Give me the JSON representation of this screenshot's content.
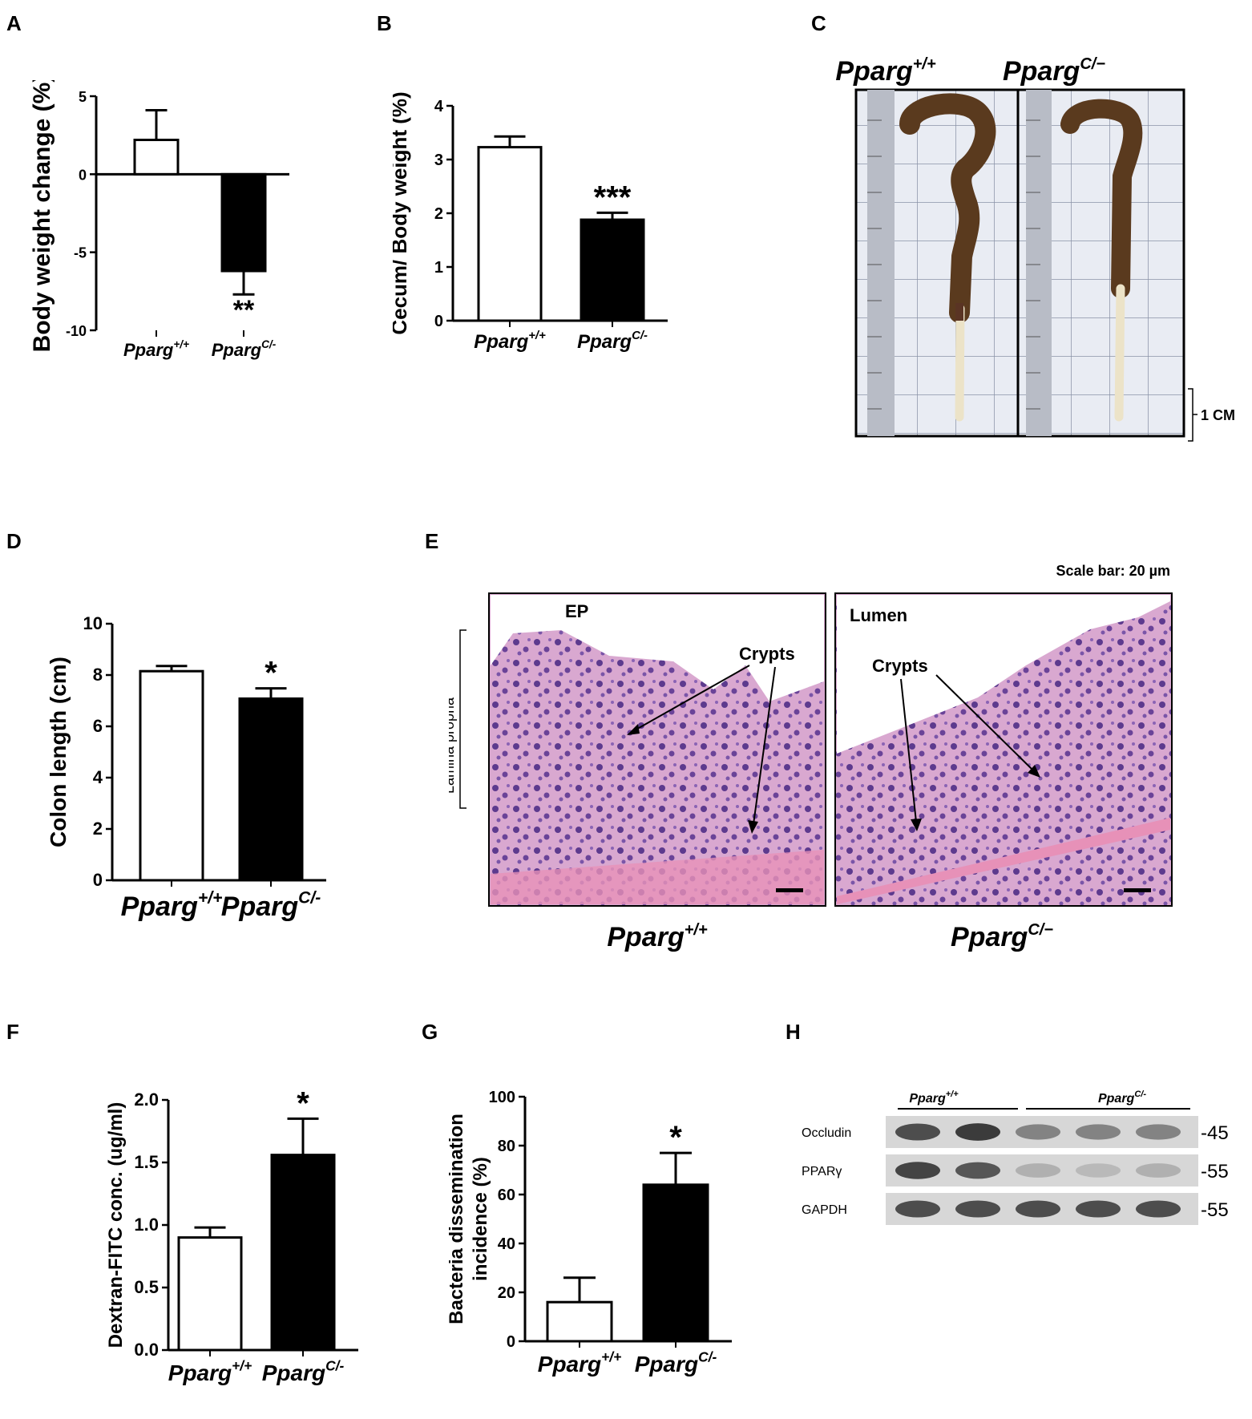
{
  "panels": {
    "A": "A",
    "B": "B",
    "C": "C",
    "D": "D",
    "E": "E",
    "F": "F",
    "G": "G",
    "H": "H"
  },
  "genotypes": {
    "wt_base": "Pparg",
    "wt_sup": "+/+",
    "ko_base": "Pparg",
    "ko_sup": "C/−",
    "ko_sup_h": "C/-"
  },
  "chart_data": [
    {
      "id": "A",
      "type": "bar",
      "categories": [
        "Pparg+/+",
        "PpargC/-"
      ],
      "values": [
        2.2,
        -6.2
      ],
      "errors": [
        1.9,
        1.5
      ],
      "colors": [
        "#ffffff",
        "#000000"
      ],
      "ylabel": "Body weight change (%)",
      "ylim": [
        -10,
        5
      ],
      "yticks": [
        5,
        0,
        -5,
        -10
      ],
      "ytick_labels": [
        "5",
        "0",
        "-5",
        "-10"
      ],
      "significance": [
        "",
        "**"
      ]
    },
    {
      "id": "B",
      "type": "bar",
      "categories": [
        "Pparg+/+",
        "PpargC/-"
      ],
      "values": [
        3.23,
        1.88
      ],
      "errors": [
        0.2,
        0.13
      ],
      "colors": [
        "#ffffff",
        "#000000"
      ],
      "ylabel": "Cecum/ Body weight (%)",
      "ylim": [
        0,
        4
      ],
      "yticks": [
        0,
        1,
        2,
        3,
        4
      ],
      "ytick_labels": [
        "0",
        "1",
        "2",
        "3",
        "4"
      ],
      "significance": [
        "",
        "***"
      ]
    },
    {
      "id": "D",
      "type": "bar",
      "categories": [
        "Pparg+/+",
        "PpargC/-"
      ],
      "values": [
        8.15,
        7.08
      ],
      "errors": [
        0.2,
        0.4
      ],
      "colors": [
        "#ffffff",
        "#000000"
      ],
      "ylabel": "Colon length (cm)",
      "ylim": [
        0,
        10
      ],
      "yticks": [
        0,
        2,
        4,
        6,
        8,
        10
      ],
      "ytick_labels": [
        "0",
        "2",
        "4",
        "6",
        "8",
        "10"
      ],
      "significance": [
        "",
        "*"
      ]
    },
    {
      "id": "F",
      "type": "bar",
      "categories": [
        "Pparg+/+",
        "PpargC/-"
      ],
      "values": [
        0.9,
        1.56
      ],
      "errors": [
        0.08,
        0.29
      ],
      "colors": [
        "#ffffff",
        "#000000"
      ],
      "ylabel": "Dextran-FITC conc. (ug/ml)",
      "ylim": [
        0,
        2
      ],
      "yticks": [
        0,
        0.5,
        1,
        1.5,
        2
      ],
      "ytick_labels": [
        "0.0",
        "0.5",
        "1.0",
        "1.5",
        "2.0"
      ],
      "significance": [
        "",
        "*"
      ]
    },
    {
      "id": "G",
      "type": "bar",
      "categories": [
        "Pparg+/+",
        "PpargC/-"
      ],
      "values": [
        16,
        64
      ],
      "errors": [
        10,
        13
      ],
      "colors": [
        "#ffffff",
        "#000000"
      ],
      "ylabel_lines": [
        "Bacteria dissemination",
        "incidence (%)"
      ],
      "ylim": [
        0,
        100
      ],
      "yticks": [
        0,
        20,
        40,
        60,
        80,
        100
      ],
      "ytick_labels": [
        "0",
        "20",
        "40",
        "60",
        "80",
        "100"
      ],
      "significance": [
        "",
        "*"
      ]
    }
  ],
  "photo_c": {
    "scale_label": "1 CM"
  },
  "histology_e": {
    "scale_bar": "Scale bar: 20 µm",
    "ep": "EP",
    "lamina": "Lamina propria",
    "crypts_left": "Crypts",
    "crypts_right": "Crypts",
    "lumen": "Lumen"
  },
  "western_h": {
    "rows": [
      "Occludin",
      "PPARγ",
      "GAPDH"
    ],
    "markers": [
      "-45",
      "-55",
      "-55"
    ],
    "band_intensity": [
      [
        0.85,
        0.95,
        0.55,
        0.55,
        0.55
      ],
      [
        0.9,
        0.8,
        0.3,
        0.25,
        0.3
      ],
      [
        0.85,
        0.85,
        0.85,
        0.85,
        0.85
      ]
    ]
  }
}
